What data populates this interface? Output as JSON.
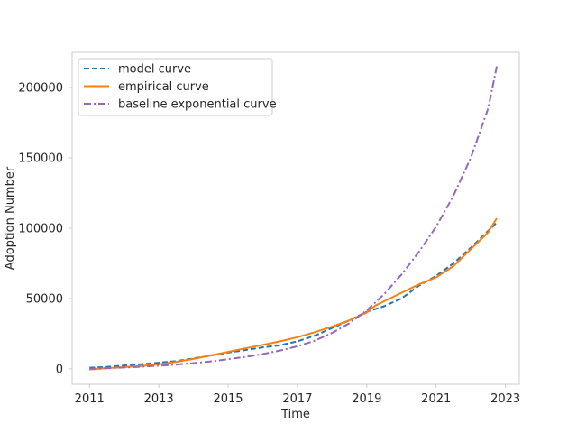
{
  "chart_data": {
    "type": "line",
    "title": "",
    "xlabel": "Time",
    "ylabel": "Adoption Number",
    "xlim": [
      2010.5,
      2023.4
    ],
    "ylim": [
      -11000,
      225000
    ],
    "xticks": [
      2011,
      2013,
      2015,
      2017,
      2019,
      2021,
      2023
    ],
    "xtick_labels": [
      "2011",
      "2013",
      "2015",
      "2017",
      "2019",
      "2021",
      "2023"
    ],
    "yticks": [
      0,
      50000,
      100000,
      150000,
      200000
    ],
    "ytick_labels": [
      "0",
      "50000",
      "100000",
      "150000",
      "200000"
    ],
    "grid": false,
    "legend_position": "top-left",
    "series": [
      {
        "name": "model curve",
        "color": "#1f77b4",
        "linestyle": "dashed",
        "x": [
          2011.0,
          2011.5,
          2012.0,
          2012.5,
          2013.0,
          2013.5,
          2014.0,
          2014.5,
          2015.0,
          2015.5,
          2016.0,
          2016.5,
          2017.0,
          2017.5,
          2018.0,
          2018.5,
          2019.0,
          2019.5,
          2020.0,
          2020.5,
          2021.0,
          2021.5,
          2022.0,
          2022.5,
          2022.75
        ],
        "values": [
          800,
          1300,
          2400,
          3300,
          4300,
          5500,
          7400,
          9400,
          11500,
          13300,
          15200,
          16800,
          19500,
          23500,
          29000,
          34500,
          40500,
          44500,
          50000,
          59000,
          66000,
          75000,
          86000,
          98000,
          104000
        ]
      },
      {
        "name": "empirical curve",
        "color": "#ff7f0e",
        "linestyle": "solid",
        "x": [
          2011.0,
          2011.5,
          2012.0,
          2012.5,
          2013.0,
          2013.5,
          2014.0,
          2014.5,
          2015.0,
          2015.5,
          2016.0,
          2016.5,
          2017.0,
          2017.5,
          2018.0,
          2018.5,
          2019.0,
          2019.25,
          2019.5,
          2020.0,
          2020.5,
          2021.0,
          2021.5,
          2022.0,
          2022.5,
          2022.75
        ],
        "values": [
          -500,
          500,
          1200,
          2000,
          3200,
          5000,
          7000,
          9500,
          12000,
          14500,
          17000,
          19500,
          22500,
          26000,
          30000,
          34500,
          40000,
          45000,
          48000,
          54000,
          60000,
          65000,
          73000,
          85000,
          97000,
          107000
        ]
      },
      {
        "name": "baseline exponential curve",
        "color": "#9467bd",
        "linestyle": "dashdot",
        "x": [
          2011.0,
          2011.5,
          2012.0,
          2012.5,
          2013.0,
          2013.5,
          2014.0,
          2014.5,
          2015.0,
          2015.5,
          2016.0,
          2016.5,
          2017.0,
          2017.5,
          2018.0,
          2018.5,
          2019.0,
          2019.5,
          2020.0,
          2020.5,
          2021.0,
          2021.5,
          2022.0,
          2022.5,
          2022.75
        ],
        "values": [
          0,
          400,
          900,
          1500,
          2200,
          3000,
          4000,
          5300,
          6800,
          8500,
          10500,
          13000,
          16000,
          20000,
          25500,
          32500,
          41500,
          53000,
          67000,
          83000,
          101000,
          123000,
          150000,
          185000,
          215000
        ]
      }
    ]
  }
}
